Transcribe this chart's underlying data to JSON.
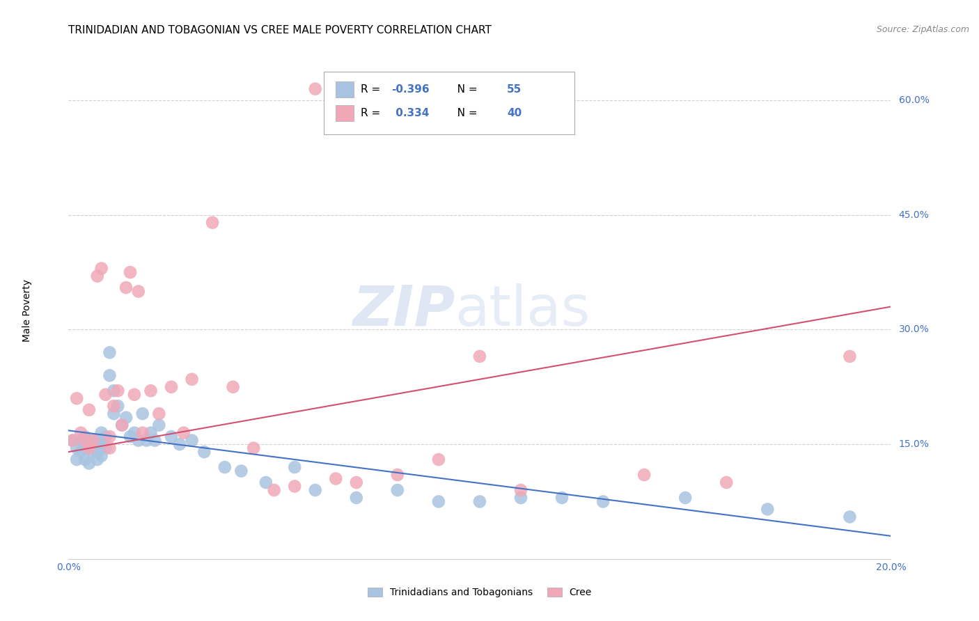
{
  "title": "TRINIDADIAN AND TOBAGONIAN VS CREE MALE POVERTY CORRELATION CHART",
  "source": "Source: ZipAtlas.com",
  "ylabel": "Male Poverty",
  "xlim": [
    0.0,
    0.2
  ],
  "ylim": [
    0.0,
    0.65
  ],
  "xticks": [
    0.0,
    0.05,
    0.1,
    0.15,
    0.2
  ],
  "xticklabels": [
    "0.0%",
    "",
    "",
    "",
    "20.0%"
  ],
  "ytick_positions": [
    0.15,
    0.3,
    0.45,
    0.6
  ],
  "ytick_labels": [
    "15.0%",
    "30.0%",
    "45.0%",
    "60.0%"
  ],
  "grid_color": "#d0d0d0",
  "background_color": "#ffffff",
  "blue_scatter_x": [
    0.001,
    0.002,
    0.002,
    0.003,
    0.003,
    0.004,
    0.004,
    0.004,
    0.005,
    0.005,
    0.005,
    0.006,
    0.006,
    0.007,
    0.007,
    0.007,
    0.008,
    0.008,
    0.008,
    0.009,
    0.009,
    0.01,
    0.01,
    0.011,
    0.011,
    0.012,
    0.013,
    0.014,
    0.015,
    0.016,
    0.017,
    0.018,
    0.019,
    0.02,
    0.021,
    0.022,
    0.025,
    0.027,
    0.03,
    0.033,
    0.038,
    0.042,
    0.048,
    0.055,
    0.06,
    0.07,
    0.08,
    0.09,
    0.1,
    0.11,
    0.12,
    0.13,
    0.15,
    0.17,
    0.19
  ],
  "blue_scatter_y": [
    0.155,
    0.145,
    0.13,
    0.155,
    0.14,
    0.16,
    0.145,
    0.13,
    0.155,
    0.145,
    0.125,
    0.15,
    0.14,
    0.155,
    0.14,
    0.13,
    0.165,
    0.15,
    0.135,
    0.16,
    0.145,
    0.27,
    0.24,
    0.22,
    0.19,
    0.2,
    0.175,
    0.185,
    0.16,
    0.165,
    0.155,
    0.19,
    0.155,
    0.165,
    0.155,
    0.175,
    0.16,
    0.15,
    0.155,
    0.14,
    0.12,
    0.115,
    0.1,
    0.12,
    0.09,
    0.08,
    0.09,
    0.075,
    0.075,
    0.08,
    0.08,
    0.075,
    0.08,
    0.065,
    0.055
  ],
  "pink_scatter_x": [
    0.001,
    0.002,
    0.003,
    0.004,
    0.005,
    0.005,
    0.006,
    0.007,
    0.008,
    0.009,
    0.01,
    0.01,
    0.011,
    0.012,
    0.013,
    0.014,
    0.015,
    0.016,
    0.017,
    0.018,
    0.02,
    0.022,
    0.025,
    0.028,
    0.03,
    0.035,
    0.04,
    0.045,
    0.05,
    0.055,
    0.06,
    0.065,
    0.07,
    0.08,
    0.09,
    0.1,
    0.11,
    0.14,
    0.16,
    0.19
  ],
  "pink_scatter_y": [
    0.155,
    0.21,
    0.165,
    0.155,
    0.195,
    0.145,
    0.155,
    0.37,
    0.38,
    0.215,
    0.16,
    0.145,
    0.2,
    0.22,
    0.175,
    0.355,
    0.375,
    0.215,
    0.35,
    0.165,
    0.22,
    0.19,
    0.225,
    0.165,
    0.235,
    0.44,
    0.225,
    0.145,
    0.09,
    0.095,
    0.615,
    0.105,
    0.1,
    0.11,
    0.13,
    0.265,
    0.09,
    0.11,
    0.1,
    0.265
  ],
  "blue_line_x": [
    0.0,
    0.2
  ],
  "blue_line_y": [
    0.168,
    0.03
  ],
  "pink_line_x": [
    0.0,
    0.2
  ],
  "pink_line_y": [
    0.14,
    0.33
  ],
  "blue_color": "#a8c4e0",
  "pink_color": "#f0a8b8",
  "blue_line_color": "#4472c4",
  "pink_line_color": "#d45070",
  "legend_r_blue": "-0.396",
  "legend_n_blue": "55",
  "legend_r_pink": "0.334",
  "legend_n_pink": "40",
  "bottom_legend_blue": "Trinidadians and Tobagonians",
  "bottom_legend_pink": "Cree",
  "title_fontsize": 11,
  "axis_label_fontsize": 10,
  "tick_fontsize": 10,
  "legend_fontsize": 11,
  "source_fontsize": 9,
  "accent_color": "#4472c4"
}
